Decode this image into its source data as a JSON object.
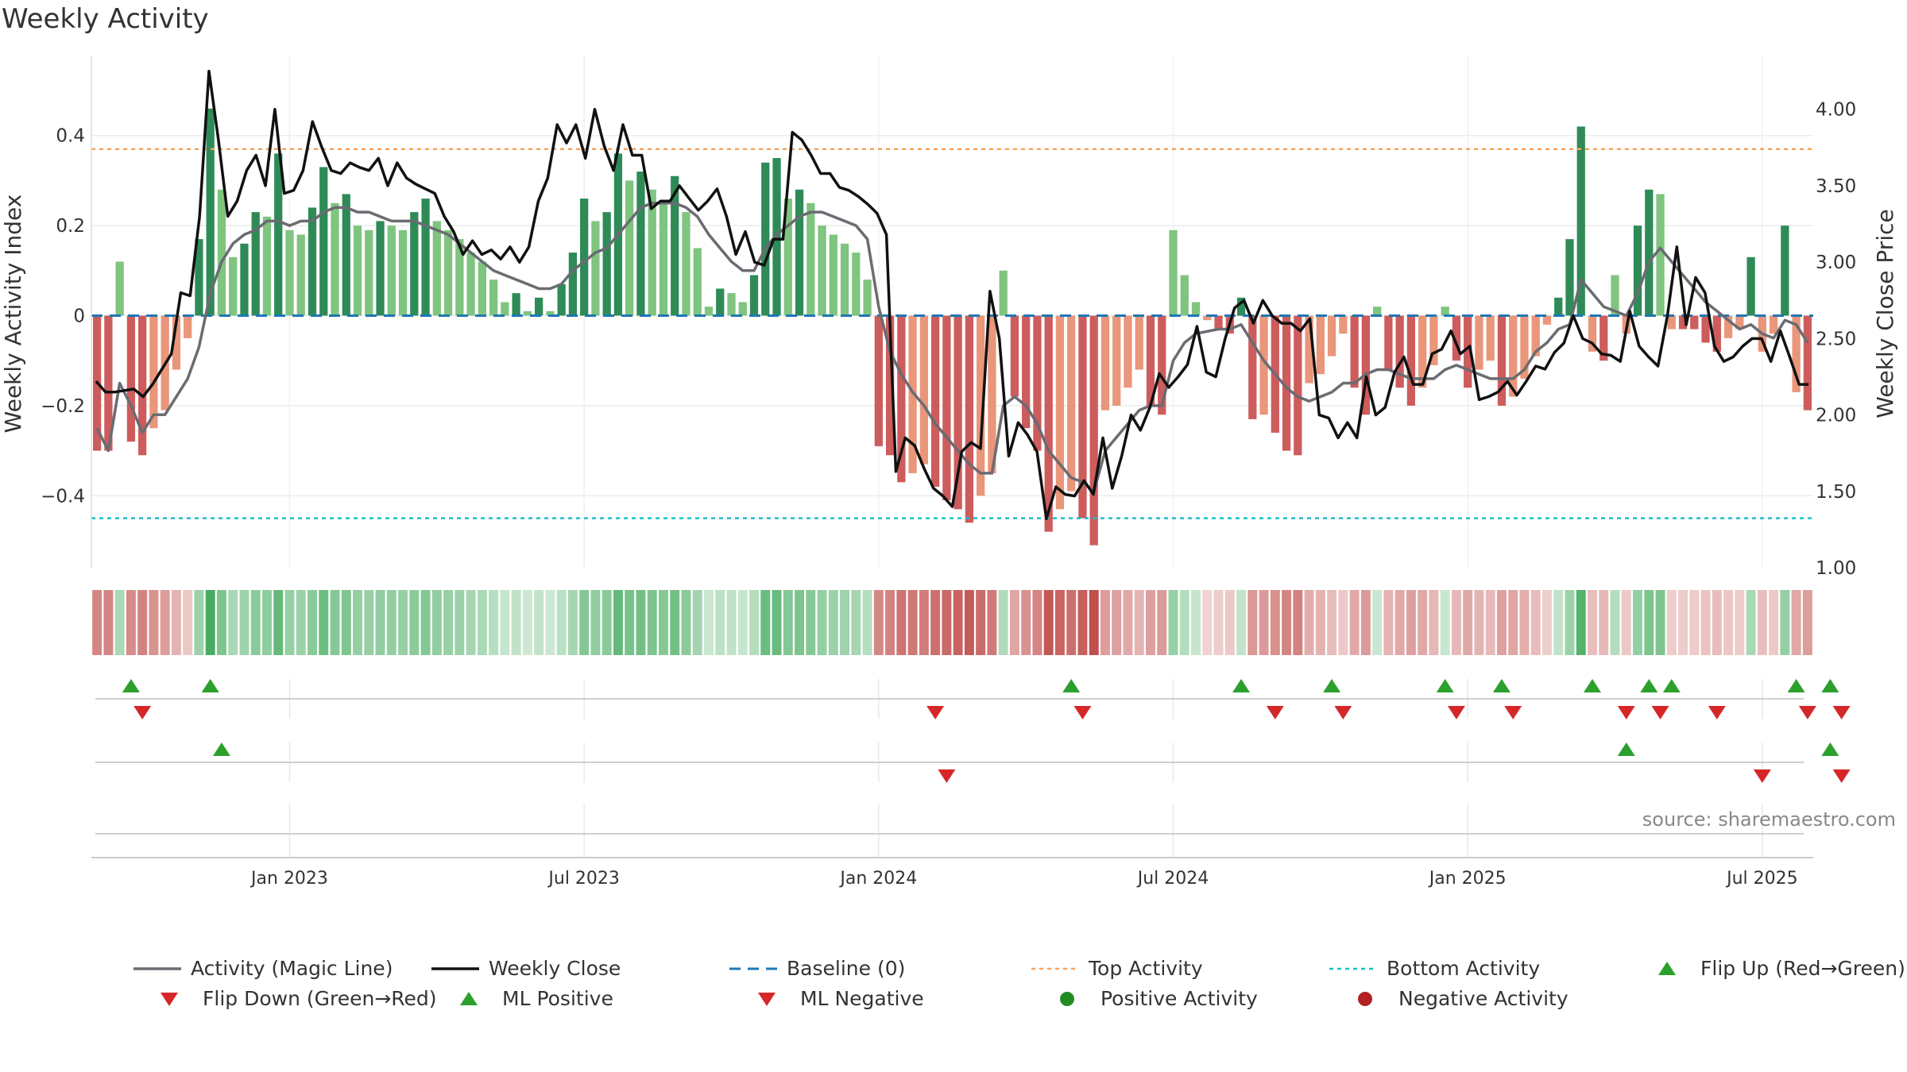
{
  "chart_data": {
    "type": "bar",
    "title": "Weekly Activity",
    "source": "source: sharemaestro.com",
    "y_left": {
      "label": "Weekly Activity Index",
      "lim": [
        -0.56,
        0.56
      ],
      "ticks": [
        -0.4,
        -0.2,
        0,
        0.2,
        0.4
      ],
      "tick_labels": [
        "−0.4",
        "−0.2",
        "0",
        "0.2",
        "0.4"
      ]
    },
    "y_right": {
      "label": "Weekly Close Price",
      "lim": [
        1.0,
        4.3
      ],
      "ticks": [
        1.0,
        1.5,
        2.0,
        2.5,
        3.0,
        3.5,
        4.0
      ],
      "tick_labels": [
        "1.00",
        "1.50",
        "2.00",
        "2.50",
        "3.00",
        "3.50",
        "4.00"
      ]
    },
    "x_ticks": [
      {
        "week": 17,
        "label": "Jan 2023"
      },
      {
        "week": 43,
        "label": "Jul 2023"
      },
      {
        "week": 69,
        "label": "Jan 2024"
      },
      {
        "week": 95,
        "label": "Jul 2024"
      },
      {
        "week": 121,
        "label": "Jan 2025"
      },
      {
        "week": 147,
        "label": "Jul 2025"
      }
    ],
    "top_activity": 0.37,
    "bottom_activity": -0.45,
    "baseline": 0,
    "activity": [
      -0.3,
      -0.3,
      0.12,
      -0.28,
      -0.31,
      -0.25,
      -0.21,
      -0.12,
      -0.05,
      0.17,
      0.46,
      0.28,
      0.13,
      0.16,
      0.23,
      0.22,
      0.36,
      0.19,
      0.18,
      0.24,
      0.33,
      0.25,
      0.27,
      0.2,
      0.19,
      0.21,
      0.2,
      0.19,
      0.23,
      0.26,
      0.21,
      0.19,
      0.17,
      0.14,
      0.12,
      0.08,
      0.03,
      0.05,
      0.01,
      0.04,
      0.01,
      0.07,
      0.14,
      0.26,
      0.21,
      0.23,
      0.36,
      0.3,
      0.32,
      0.28,
      0.25,
      0.31,
      0.23,
      0.15,
      0.02,
      0.06,
      0.05,
      0.03,
      0.09,
      0.34,
      0.35,
      0.26,
      0.28,
      0.25,
      0.2,
      0.18,
      0.16,
      0.14,
      0.08,
      -0.29,
      -0.31,
      -0.37,
      -0.35,
      -0.33,
      -0.38,
      -0.41,
      -0.43,
      -0.46,
      -0.4,
      -0.35,
      0.1,
      -0.18,
      -0.25,
      -0.3,
      -0.48,
      -0.43,
      -0.39,
      -0.45,
      -0.51,
      -0.21,
      -0.2,
      -0.16,
      -0.12,
      -0.2,
      -0.22,
      0.19,
      0.09,
      0.03,
      -0.01,
      -0.03,
      -0.04,
      0.04,
      -0.23,
      -0.22,
      -0.26,
      -0.3,
      -0.31,
      -0.15,
      -0.13,
      -0.09,
      -0.04,
      -0.16,
      -0.22,
      0.02,
      -0.12,
      -0.16,
      -0.2,
      -0.16,
      -0.11,
      0.02,
      -0.1,
      -0.16,
      -0.12,
      -0.1,
      -0.2,
      -0.18,
      -0.14,
      -0.09,
      -0.02,
      0.04,
      0.17,
      0.42,
      -0.08,
      -0.1,
      0.09,
      -0.04,
      0.2,
      0.28,
      0.27,
      -0.03,
      -0.03,
      -0.03,
      -0.06,
      -0.08,
      -0.05,
      -0.03,
      0.13,
      -0.08,
      -0.04,
      0.2,
      -0.17,
      -0.21
    ],
    "magic_line": [
      -0.25,
      -0.3,
      -0.15,
      -0.2,
      -0.26,
      -0.22,
      -0.22,
      -0.18,
      -0.14,
      -0.07,
      0.05,
      0.12,
      0.16,
      0.18,
      0.19,
      0.21,
      0.21,
      0.2,
      0.21,
      0.21,
      0.23,
      0.24,
      0.24,
      0.23,
      0.23,
      0.22,
      0.21,
      0.21,
      0.21,
      0.2,
      0.19,
      0.18,
      0.16,
      0.14,
      0.12,
      0.1,
      0.09,
      0.08,
      0.07,
      0.06,
      0.06,
      0.07,
      0.1,
      0.12,
      0.14,
      0.15,
      0.18,
      0.21,
      0.24,
      0.25,
      0.25,
      0.25,
      0.24,
      0.22,
      0.18,
      0.15,
      0.12,
      0.1,
      0.1,
      0.15,
      0.18,
      0.2,
      0.22,
      0.23,
      0.23,
      0.22,
      0.21,
      0.2,
      0.17,
      0.02,
      -0.08,
      -0.13,
      -0.17,
      -0.2,
      -0.24,
      -0.27,
      -0.3,
      -0.33,
      -0.35,
      -0.35,
      -0.2,
      -0.18,
      -0.2,
      -0.24,
      -0.3,
      -0.33,
      -0.36,
      -0.37,
      -0.39,
      -0.3,
      -0.27,
      -0.24,
      -0.21,
      -0.2,
      -0.2,
      -0.1,
      -0.06,
      -0.04,
      -0.035,
      -0.03,
      -0.03,
      -0.02,
      -0.06,
      -0.1,
      -0.13,
      -0.16,
      -0.18,
      -0.19,
      -0.18,
      -0.17,
      -0.15,
      -0.15,
      -0.13,
      -0.12,
      -0.12,
      -0.13,
      -0.14,
      -0.14,
      -0.14,
      -0.12,
      -0.11,
      -0.12,
      -0.13,
      -0.14,
      -0.14,
      -0.14,
      -0.12,
      -0.08,
      -0.06,
      -0.03,
      -0.02,
      0.08,
      0.05,
      0.02,
      0.01,
      0.0,
      0.05,
      0.12,
      0.15,
      0.12,
      0.09,
      0.06,
      0.03,
      0.01,
      -0.01,
      -0.03,
      -0.02,
      -0.04,
      -0.05,
      -0.01,
      -0.02,
      -0.06
    ],
    "weekly_close": [
      2.22,
      2.15,
      2.15,
      2.16,
      2.17,
      2.12,
      2.2,
      2.3,
      2.4,
      2.8,
      2.78,
      3.3,
      4.25,
      3.8,
      3.3,
      3.4,
      3.6,
      3.7,
      3.5,
      4.0,
      3.45,
      3.47,
      3.6,
      3.92,
      3.75,
      3.6,
      3.58,
      3.65,
      3.62,
      3.6,
      3.68,
      3.5,
      3.65,
      3.55,
      3.51,
      3.48,
      3.45,
      3.3,
      3.2,
      3.05,
      3.14,
      3.05,
      3.08,
      3.02,
      3.1,
      3.0,
      3.1,
      3.4,
      3.55,
      3.9,
      3.78,
      3.9,
      3.68,
      4.0,
      3.76,
      3.6,
      3.9,
      3.7,
      3.7,
      3.35,
      3.4,
      3.4,
      3.5,
      3.42,
      3.34,
      3.4,
      3.48,
      3.3,
      3.05,
      3.2,
      3.0,
      2.98,
      3.15,
      3.15,
      3.85,
      3.8,
      3.7,
      3.58,
      3.58,
      3.49,
      3.47,
      3.43,
      3.38,
      3.32,
      3.18,
      1.63,
      1.85,
      1.8,
      1.65,
      1.52,
      1.47,
      1.4,
      1.76,
      1.82,
      1.78,
      2.81,
      2.5,
      1.73,
      1.95,
      1.87,
      1.76,
      1.32,
      1.53,
      1.48,
      1.47,
      1.57,
      1.48,
      1.85,
      1.52,
      1.73,
      2.0,
      1.9,
      2.05,
      2.27,
      2.18,
      2.25,
      2.33,
      2.58,
      2.28,
      2.25,
      2.5,
      2.7,
      2.75,
      2.6,
      2.75,
      2.65,
      2.6,
      2.6,
      2.55,
      2.63,
      2.0,
      1.98,
      1.85,
      1.95,
      1.85,
      2.25,
      2.0,
      2.05,
      2.28,
      2.38,
      2.2,
      2.2,
      2.4,
      2.43,
      2.55,
      2.4,
      2.45,
      2.1,
      2.12,
      2.15,
      2.22,
      2.13,
      2.22,
      2.32,
      2.3,
      2.41,
      2.47,
      2.65,
      2.5,
      2.47,
      2.4,
      2.39,
      2.35,
      2.68,
      2.45,
      2.38,
      2.32,
      2.65,
      3.1,
      2.59,
      2.9,
      2.8,
      2.45,
      2.35,
      2.38,
      2.45,
      2.5,
      2.5,
      2.35,
      2.55,
      2.38,
      2.2,
      2.2
    ],
    "flip_up_weeks": [
      3,
      10,
      86,
      101,
      109,
      119,
      124,
      132,
      137,
      139,
      150,
      153
    ],
    "flip_down_weeks": [
      4,
      74,
      87,
      104,
      110,
      120,
      125,
      135,
      138,
      143,
      151,
      154
    ],
    "ml_positive_weeks": [
      11,
      135,
      153
    ],
    "ml_negative_weeks": [
      75,
      147,
      154
    ],
    "positive_activity_weeks": [],
    "negative_activity_weeks": [],
    "legend": [
      {
        "key": "magic",
        "label": "Activity (Magic Line)"
      },
      {
        "key": "close",
        "label": "Weekly Close"
      },
      {
        "key": "baseline",
        "label": "Baseline (0)"
      },
      {
        "key": "top",
        "label": "Top Activity"
      },
      {
        "key": "bottom",
        "label": "Bottom Activity"
      },
      {
        "key": "flipup",
        "label": "Flip Up (Red→Green)"
      },
      {
        "key": "flipdown",
        "label": "Flip Down (Green→Red)"
      },
      {
        "key": "mlpos",
        "label": "ML Positive"
      },
      {
        "key": "mlneg",
        "label": "ML Negative"
      },
      {
        "key": "posact",
        "label": "Positive Activity"
      },
      {
        "key": "negact",
        "label": "Negative Activity"
      }
    ],
    "colors": {
      "green_dark": "#2e8b57",
      "green_light": "#7fc47f",
      "red_dark": "#cd5c5c",
      "red_light": "#e9967a",
      "magic": "#6b6b72",
      "close": "#111111",
      "baseline": "#1f77b4",
      "top": "#f4a460",
      "bottom": "#17becf",
      "marker_up": "#2ca02c",
      "marker_down": "#d62728",
      "positive_activity": "#228b22",
      "negative_activity": "#b22222"
    }
  }
}
